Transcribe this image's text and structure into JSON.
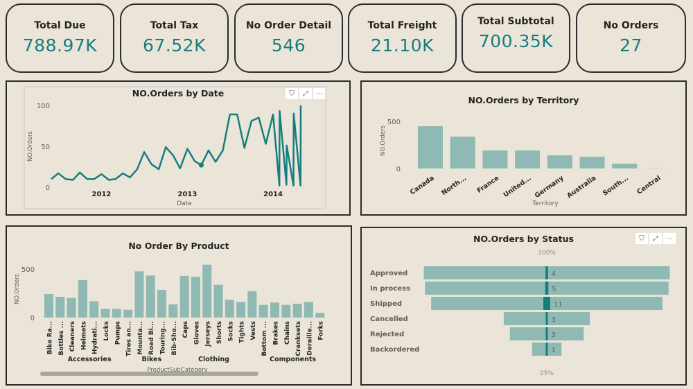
{
  "kpis": [
    {
      "label": "Total Due",
      "value": "788.97K"
    },
    {
      "label": "Total Tax",
      "value": "67.52K"
    },
    {
      "label": "No Order Detail",
      "value": "546"
    },
    {
      "label": "Total Freight",
      "value": "21.10K"
    },
    {
      "label": "Total Subtotal",
      "value": "700.35K"
    },
    {
      "label": "No Orders",
      "value": "27"
    }
  ],
  "colors": {
    "accent": "#167d7f",
    "bar_light": "#8fbab3",
    "background": "#ebe5d9",
    "border": "#2b2b2b"
  },
  "visual_icons": [
    "filter-icon",
    "focus-mode-icon",
    "more-options-icon"
  ],
  "chart_data": [
    {
      "id": "by_date",
      "type": "line",
      "title": "NO.Orders by Date",
      "xlabel": "Date",
      "ylabel": "NO.Orders",
      "ylim": [
        0,
        100
      ],
      "yticks": [
        "0",
        "50",
        "100"
      ],
      "xticks": [
        "2012",
        "2013",
        "2014"
      ],
      "highlighted_point": "2013-03-01",
      "x": [
        "2011-06-01",
        "2011-07-01",
        "2011-08-01",
        "2011-09-01",
        "2011-10-01",
        "2011-11-01",
        "2011-12-01",
        "2012-01-01",
        "2012-02-01",
        "2012-03-01",
        "2012-04-01",
        "2012-05-01",
        "2012-06-01",
        "2012-07-01",
        "2012-08-01",
        "2012-09-01",
        "2012-10-01",
        "2012-11-01",
        "2012-12-01",
        "2013-01-01",
        "2013-02-01",
        "2013-03-01",
        "2013-04-01",
        "2013-05-01",
        "2013-06-01",
        "2013-07-01",
        "2013-08-01",
        "2013-09-01",
        "2013-10-01",
        "2013-11-01",
        "2013-12-01",
        "2014-01-01",
        "2014-01-28",
        "2014-01-29",
        "2014-02-27",
        "2014-02-28",
        "2014-03-29",
        "2014-03-30",
        "2014-04-28",
        "2014-04-29"
      ],
      "y": [
        10,
        17,
        10,
        9,
        18,
        10,
        10,
        16,
        9,
        10,
        17,
        12,
        22,
        43,
        28,
        22,
        49,
        39,
        23,
        47,
        32,
        27,
        45,
        31,
        45,
        89,
        89,
        48,
        81,
        85,
        53,
        89,
        2,
        93,
        3,
        51,
        2,
        90,
        2,
        100
      ]
    },
    {
      "id": "by_territory",
      "type": "bar",
      "title": "NO.Orders by Territory",
      "xlabel": "Territory",
      "ylabel": "NO.Orders",
      "ylim": [
        0,
        500
      ],
      "yticks": [
        "0",
        "500"
      ],
      "categories": [
        "Canada",
        "North...",
        "France",
        "United...",
        "Germany",
        "Australia",
        "South...",
        "Central"
      ],
      "values": [
        448,
        338,
        191,
        191,
        140,
        125,
        51,
        2
      ]
    },
    {
      "id": "by_product",
      "type": "bar",
      "title": "No Order By Product",
      "xlabel": "ProductSubCategory",
      "ylabel": "NO.Orders",
      "ylim": [
        0,
        550
      ],
      "yticks": [
        "0",
        "500"
      ],
      "categories": [
        "Bike Ra...",
        "Bottles ...",
        "Cleaners",
        "Helmets",
        "Hydrati...",
        "Locks",
        "Pumps",
        "Tires an...",
        "Mounta...",
        "Road Bi...",
        "Touring...",
        "Bib-Sho...",
        "Caps",
        "Gloves",
        "Jerseys",
        "Shorts",
        "Socks",
        "Tights",
        "Vests",
        "Bottom ...",
        "Brakes",
        "Chains",
        "Cranksets",
        "Deraille...",
        "Forks"
      ],
      "groups": [
        {
          "name": "Accessories",
          "count": 8
        },
        {
          "name": "Bikes",
          "count": 3
        },
        {
          "name": "Clothing",
          "count": 8
        },
        {
          "name": "Components",
          "count": 6
        }
      ],
      "values": [
        243,
        214,
        202,
        386,
        169,
        90,
        90,
        81,
        476,
        433,
        286,
        136,
        429,
        421,
        545,
        338,
        183,
        162,
        271,
        131,
        155,
        131,
        143,
        160,
        48
      ]
    },
    {
      "id": "by_status",
      "type": "funnel",
      "title": "NO.Orders by Status",
      "top_label": "100%",
      "bottom_label": "25%",
      "categories": [
        "Approved",
        "In process",
        "Shipped",
        "Cancelled",
        "Rejected",
        "Backordered"
      ],
      "values": [
        4,
        5,
        11,
        3,
        3,
        1
      ],
      "bar_percent": [
        100,
        99,
        94,
        35,
        30,
        12
      ]
    }
  ]
}
